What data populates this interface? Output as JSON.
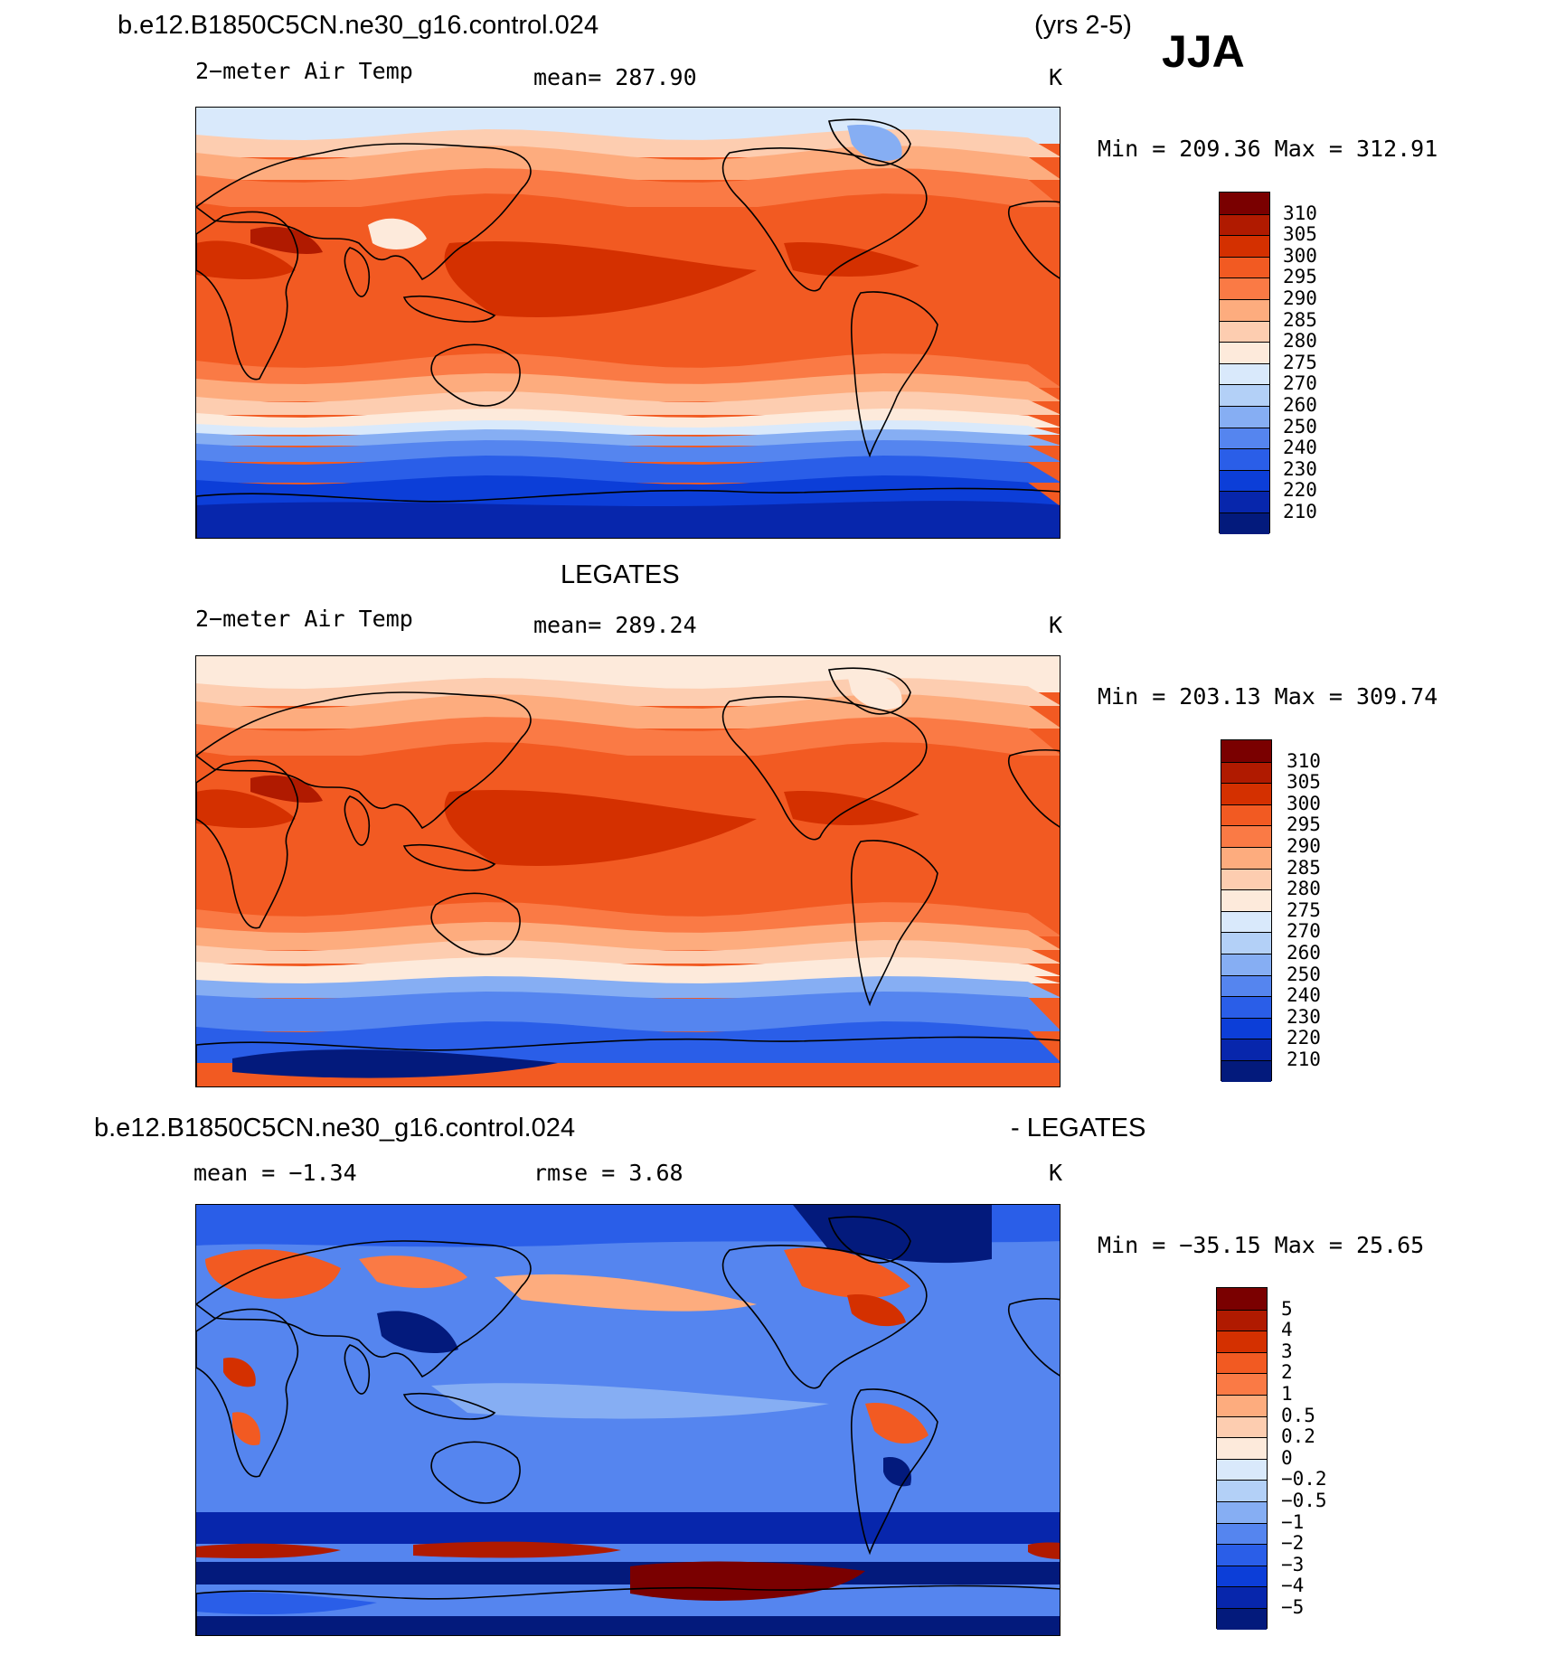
{
  "header": {
    "case_name": "b.e12.B1850C5CN.ne30_g16.control.024",
    "years": "(yrs 2-5)",
    "season": "JJA"
  },
  "panel1": {
    "variable": "2−meter Air Temp",
    "mean_text": "mean=  287.90",
    "units": "K",
    "minmax_text": "Min  =  209.36  Max  =  312.91",
    "colorbar_labels": [
      "310",
      "305",
      "300",
      "295",
      "290",
      "285",
      "280",
      "275",
      "270",
      "260",
      "250",
      "240",
      "230",
      "220",
      "210"
    ]
  },
  "panel2": {
    "title": "LEGATES",
    "variable": "2−meter Air Temp",
    "mean_text": "mean=  289.24",
    "units": "K",
    "minmax_text": "Min  =  203.13  Max  =  309.74",
    "colorbar_labels": [
      "310",
      "305",
      "300",
      "295",
      "290",
      "285",
      "280",
      "275",
      "270",
      "260",
      "250",
      "240",
      "230",
      "220",
      "210"
    ]
  },
  "panel3": {
    "title_left": "b.e12.B1850C5CN.ne30_g16.control.024",
    "title_right": "- LEGATES",
    "mean_text": "mean  =   −1.34",
    "rmse_text": "rmse  =     3.68",
    "units": "K",
    "minmax_text": "Min  =  −35.15  Max  =    25.65",
    "colorbar_labels": [
      "5",
      "4",
      "3",
      "2",
      "1",
      "0.5",
      "0.2",
      "0",
      "−0.2",
      "−0.5",
      "−1",
      "−2",
      "−3",
      "−4",
      "−5"
    ]
  },
  "colors": {
    "scale": [
      "#7a0000",
      "#b01a00",
      "#d43000",
      "#f25a22",
      "#fa7a45",
      "#fdac7e",
      "#fdcdb0",
      "#fdeadb",
      "#d9e9fb",
      "#b3d0f7",
      "#86aef3",
      "#5585ef",
      "#2a5ee8",
      "#0c3ed8",
      "#0726ac",
      "#031a7c"
    ]
  }
}
